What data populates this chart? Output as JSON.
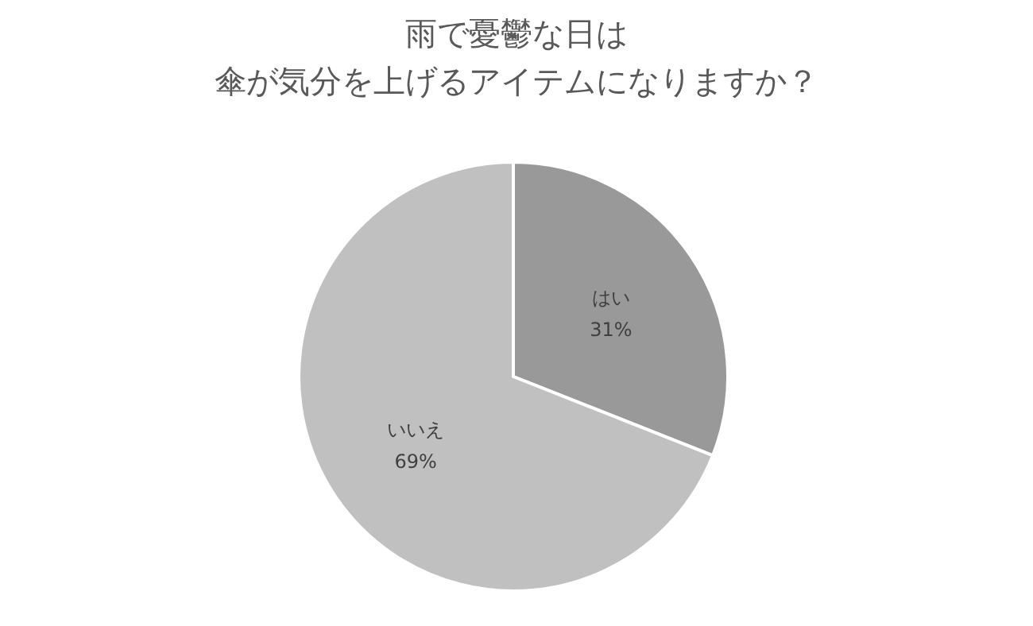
{
  "chart_data": {
    "type": "pie",
    "title": "雨で憂鬱な日は",
    "subtitle": "傘が気分を上げるアイテムになりますか？",
    "categories": [
      "はい",
      "いいえ"
    ],
    "values": [
      31,
      69
    ],
    "value_labels": [
      "31%",
      "69%"
    ],
    "colors": [
      "#999999",
      "#c0c0c0"
    ]
  }
}
